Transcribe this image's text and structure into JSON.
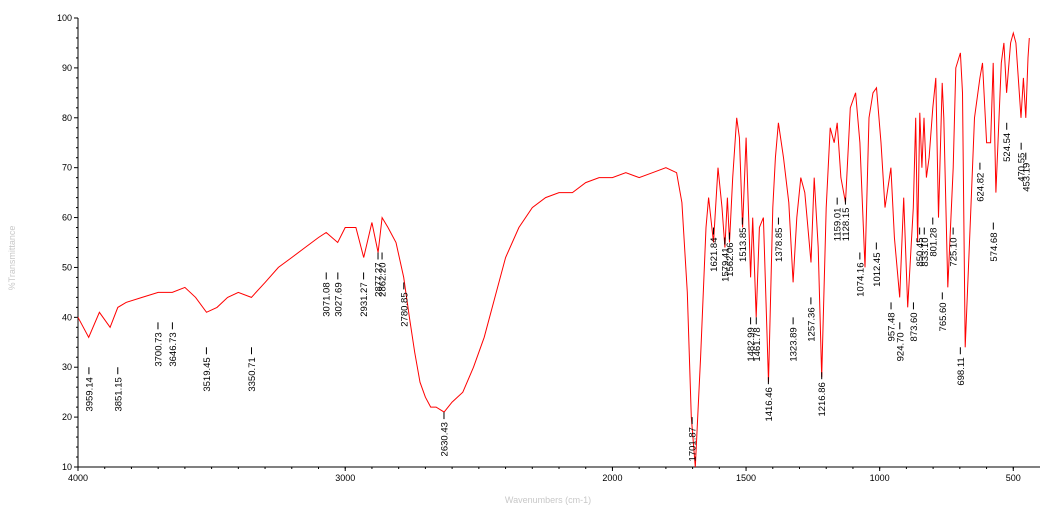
{
  "chart_data": {
    "type": "line",
    "title": "",
    "xlabel": "Wavenumbers (cm-1)",
    "ylabel": "%Transmittance",
    "xlim": [
      4000,
      400
    ],
    "ylim": [
      10,
      100
    ],
    "x_reversed": true,
    "grid": false,
    "legend": "none",
    "colors": {
      "line": "#ff0000",
      "axis": "#000000",
      "axis_title": "#c8c8c8"
    },
    "x_ticks": [
      "4000",
      "3000",
      "2000",
      "1500",
      "1000",
      "500"
    ],
    "y_ticks": [
      "10",
      "20",
      "30",
      "40",
      "50",
      "60",
      "70",
      "80",
      "90",
      "100"
    ],
    "series": [
      {
        "name": "",
        "x": [
          4000,
          3960,
          3920,
          3880,
          3851,
          3820,
          3760,
          3700,
          3647,
          3600,
          3560,
          3519,
          3480,
          3440,
          3400,
          3351,
          3300,
          3250,
          3200,
          3150,
          3100,
          3071,
          3028,
          3000,
          2960,
          2931,
          2900,
          2877,
          2862,
          2840,
          2810,
          2781,
          2760,
          2740,
          2720,
          2700,
          2680,
          2660,
          2630,
          2600,
          2560,
          2520,
          2480,
          2440,
          2400,
          2350,
          2300,
          2250,
          2200,
          2150,
          2100,
          2050,
          2000,
          1950,
          1900,
          1850,
          1800,
          1760,
          1740,
          1720,
          1705,
          1690,
          1670,
          1650,
          1640,
          1622,
          1605,
          1590,
          1579,
          1570,
          1562,
          1550,
          1535,
          1525,
          1513,
          1500,
          1483,
          1475,
          1462,
          1450,
          1435,
          1416,
          1400,
          1390,
          1379,
          1360,
          1340,
          1324,
          1310,
          1295,
          1280,
          1257,
          1245,
          1230,
          1217,
          1200,
          1185,
          1170,
          1159,
          1145,
          1128,
          1110,
          1090,
          1074,
          1055,
          1040,
          1025,
          1012,
          995,
          980,
          958,
          945,
          925,
          910,
          895,
          874,
          865,
          858,
          850,
          842,
          834,
          825,
          815,
          801,
          790,
          780,
          766,
          760,
          745,
          725,
          715,
          698,
          690,
          680,
          660,
          645,
          625,
          615,
          600,
          585,
          575,
          565,
          545,
          535,
          525,
          510,
          500,
          490,
          471,
          462,
          453,
          445,
          440
        ],
        "y": [
          40,
          36,
          41,
          38,
          42,
          43,
          44,
          45,
          45,
          46,
          44,
          41,
          42,
          44,
          45,
          44,
          47,
          50,
          52,
          54,
          56,
          57,
          55,
          58,
          58,
          52,
          59,
          53,
          60,
          58,
          55,
          48,
          40,
          33,
          27,
          24,
          22,
          22,
          21,
          23,
          25,
          30,
          36,
          44,
          52,
          58,
          62,
          64,
          65,
          65,
          67,
          68,
          68,
          69,
          68,
          69,
          70,
          69,
          63,
          45,
          20,
          10,
          32,
          58,
          64,
          55,
          70,
          62,
          54,
          64,
          55,
          68,
          80,
          76,
          58,
          76,
          48,
          60,
          40,
          58,
          60,
          27,
          62,
          72,
          79,
          72,
          63,
          47,
          60,
          68,
          65,
          51,
          68,
          54,
          28,
          62,
          78,
          75,
          79,
          68,
          63,
          82,
          85,
          75,
          50,
          80,
          85,
          86,
          75,
          62,
          70,
          56,
          44,
          64,
          42,
          62,
          80,
          55,
          81,
          70,
          80,
          68,
          72,
          82,
          88,
          60,
          87,
          80,
          46,
          70,
          90,
          93,
          85,
          34,
          60,
          80,
          88,
          91,
          75,
          75,
          91,
          65,
          91,
          95,
          85,
          95,
          97,
          95,
          80,
          88,
          80,
          92,
          96
        ]
      }
    ],
    "peak_labels": [
      "3959.14",
      "3851.15",
      "3700.73",
      "3646.73",
      "3519.45",
      "3350.71",
      "3071.08",
      "3027.69",
      "2931.27",
      "2877.27",
      "2862.20",
      "2780.85",
      "2630.43",
      "1701.87",
      "1621.84",
      "1579.41",
      "1562.06",
      "1513.85",
      "1482.99",
      "1461.78",
      "1416.46",
      "1378.85",
      "1323.89",
      "1257.36",
      "1216.86",
      "1159.01",
      "1128.15",
      "1074.16",
      "1012.45",
      "957.48",
      "924.70",
      "873.60",
      "850.45",
      "833.10",
      "801.28",
      "765.60",
      "725.10",
      "698.11",
      "624.82",
      "574.68",
      "524.54",
      "470.55",
      "453.19"
    ],
    "peak_y": [
      30,
      30,
      39,
      39,
      34,
      34,
      49,
      49,
      49,
      53,
      53,
      47,
      21,
      20,
      58,
      56,
      57,
      60,
      40,
      40,
      28,
      60,
      40,
      44,
      29,
      64,
      64,
      53,
      55,
      43,
      39,
      43,
      58,
      58,
      60,
      45,
      58,
      34,
      71,
      59,
      79,
      75,
      73
    ]
  }
}
